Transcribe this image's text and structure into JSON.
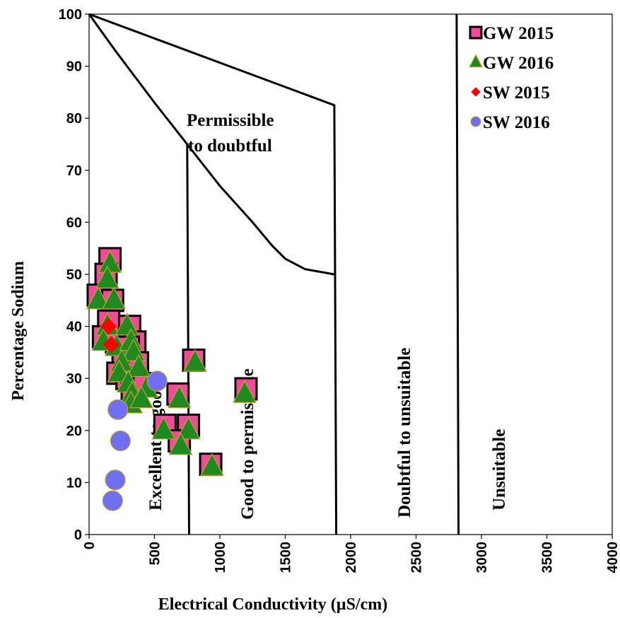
{
  "chart_data": {
    "type": "scatter",
    "xlabel": "Electrical Conductivity (µS/cm)",
    "ylabel": "Percentage Sodium",
    "xlim": [
      0,
      4000
    ],
    "ylim": [
      0,
      100
    ],
    "x_ticks": [
      "0",
      "500",
      "1000",
      "1500",
      "2000",
      "2500",
      "3000",
      "3500",
      "4000"
    ],
    "y_ticks": [
      "0",
      "10",
      "20",
      "30",
      "40",
      "50",
      "60",
      "70",
      "80",
      "90",
      "100"
    ],
    "grid": false,
    "legend_position": "top-right",
    "region_labels": [
      {
        "id": "excellent",
        "text": "Excellent to good"
      },
      {
        "id": "good",
        "text": "Good to permissible"
      },
      {
        "id": "doubtful",
        "text": "Doubtful to unsuitable"
      },
      {
        "id": "unsuitable",
        "text": "Unsuitable"
      },
      {
        "id": "permissible-1",
        "text": "Permissible"
      },
      {
        "id": "permissible-2",
        "text": "to doubtful"
      }
    ],
    "boundary_lines": [
      {
        "name": "upper-diagonal",
        "points": [
          [
            0,
            100
          ],
          [
            1875,
            82.5
          ],
          [
            1890,
            0
          ]
        ]
      },
      {
        "name": "permissible-curve",
        "points": [
          [
            0,
            100
          ],
          [
            200,
            93
          ],
          [
            500,
            83
          ],
          [
            750,
            75
          ],
          [
            1000,
            67
          ],
          [
            1250,
            60
          ],
          [
            1400,
            55.5
          ],
          [
            1500,
            53
          ],
          [
            1650,
            51
          ],
          [
            1875,
            50
          ]
        ]
      },
      {
        "name": "excellent-boundary",
        "points": [
          [
            750,
            75
          ],
          [
            765,
            0
          ]
        ]
      },
      {
        "name": "unsuitable-boundary",
        "points": [
          [
            2810,
            100
          ],
          [
            2825,
            0
          ]
        ]
      }
    ],
    "series": [
      {
        "name": "GW 2015",
        "marker": "square",
        "color": "#ee4c98",
        "edge_color": "#000000",
        "points": [
          [
            160,
            53
          ],
          [
            130,
            50
          ],
          [
            70,
            46
          ],
          [
            180,
            45
          ],
          [
            150,
            41
          ],
          [
            110,
            38
          ],
          [
            210,
            37
          ],
          [
            310,
            40
          ],
          [
            350,
            37
          ],
          [
            300,
            36
          ],
          [
            260,
            34
          ],
          [
            370,
            33
          ],
          [
            220,
            31
          ],
          [
            290,
            30
          ],
          [
            330,
            28
          ],
          [
            420,
            29
          ],
          [
            680,
            27
          ],
          [
            800,
            33.5
          ],
          [
            1200,
            28
          ],
          [
            580,
            21
          ],
          [
            760,
            21
          ],
          [
            690,
            18
          ],
          [
            930,
            13.5
          ]
        ]
      },
      {
        "name": "GW 2016",
        "marker": "triangle",
        "color": "#1f8a1f",
        "edge_color": "#c9a030",
        "points": [
          [
            160,
            52
          ],
          [
            140,
            49
          ],
          [
            70,
            45
          ],
          [
            190,
            45
          ],
          [
            140,
            40
          ],
          [
            110,
            37
          ],
          [
            210,
            36
          ],
          [
            290,
            40
          ],
          [
            320,
            37
          ],
          [
            340,
            35
          ],
          [
            250,
            33
          ],
          [
            380,
            32
          ],
          [
            230,
            31
          ],
          [
            300,
            29
          ],
          [
            330,
            27
          ],
          [
            440,
            28
          ],
          [
            690,
            26
          ],
          [
            810,
            33
          ],
          [
            1190,
            27
          ],
          [
            570,
            20
          ],
          [
            760,
            20
          ],
          [
            700,
            17
          ],
          [
            940,
            13
          ],
          [
            320,
            25
          ],
          [
            400,
            26
          ]
        ]
      },
      {
        "name": "SW 2015",
        "marker": "diamond",
        "color": "#ff0000",
        "edge_color": "#ff0000",
        "points": [
          [
            150,
            40
          ],
          [
            170,
            36.5
          ]
        ]
      },
      {
        "name": "SW 2016",
        "marker": "circle",
        "color": "#6f6ff2",
        "edge_color": "#c9a030",
        "points": [
          [
            520,
            29.5
          ],
          [
            220,
            24
          ],
          [
            240,
            18
          ],
          [
            200,
            10.5
          ],
          [
            180,
            6.5
          ]
        ]
      }
    ]
  }
}
